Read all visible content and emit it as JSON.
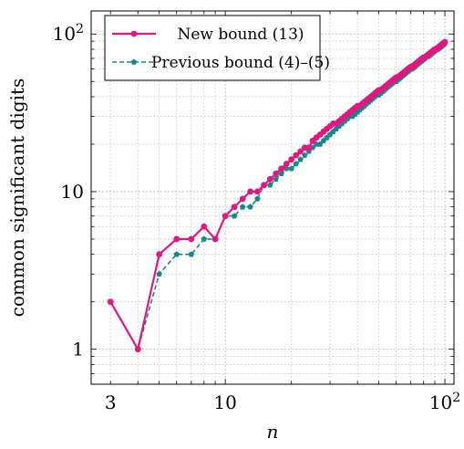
{
  "chart_data": {
    "type": "line",
    "xlabel": "n",
    "ylabel": "common significant digits",
    "xscale": "log",
    "yscale": "log",
    "xlim": [
      2.45,
      110
    ],
    "ylim": [
      0.6,
      140
    ],
    "xticks": [
      {
        "value": 3,
        "label": "3"
      },
      {
        "value": 10,
        "label": "10"
      },
      {
        "value": 100,
        "label": "10",
        "sup": "2"
      }
    ],
    "yticks": [
      {
        "value": 1,
        "label": "1"
      },
      {
        "value": 10,
        "label": "10"
      },
      {
        "value": 100,
        "label": "10",
        "sup": "2"
      }
    ],
    "grid": true,
    "legend_position": "top-left",
    "series": [
      {
        "name": "New bound (13)",
        "color": "#e6157f",
        "style": "solid",
        "marker": "circle",
        "x": [
          3,
          4,
          5,
          6,
          7,
          8,
          9,
          10,
          11,
          12,
          13,
          14,
          15,
          16,
          17,
          18,
          19,
          20,
          21,
          22,
          23,
          24,
          25,
          26,
          27,
          28,
          29,
          30,
          31,
          32,
          33,
          34,
          35,
          36,
          37,
          38,
          39,
          40,
          41,
          42,
          43,
          44,
          45,
          46,
          47,
          48,
          49,
          50,
          51,
          52,
          53,
          54,
          55,
          56,
          57,
          58,
          59,
          60,
          61,
          62,
          63,
          64,
          65,
          66,
          67,
          68,
          69,
          70,
          71,
          72,
          73,
          74,
          75,
          76,
          77,
          78,
          79,
          80,
          81,
          82,
          83,
          84,
          85,
          86,
          87,
          88,
          89,
          90,
          91,
          92,
          93,
          94,
          95,
          96,
          97,
          98,
          99,
          100
        ],
        "y": [
          2,
          1,
          4,
          5,
          5,
          6,
          5,
          7,
          8,
          9,
          10,
          10,
          11,
          12,
          13,
          14,
          15,
          16,
          17,
          18,
          19,
          19,
          21,
          22,
          23,
          24,
          25,
          26,
          27,
          27,
          28,
          29,
          30,
          31,
          32,
          33,
          34,
          35,
          35,
          36,
          37,
          38,
          39,
          40,
          41,
          42,
          43,
          44,
          44,
          45,
          46,
          47,
          48,
          49,
          50,
          51,
          52,
          53,
          53,
          54,
          55,
          56,
          57,
          58,
          59,
          60,
          61,
          62,
          62,
          63,
          64,
          65,
          66,
          67,
          68,
          69,
          70,
          71,
          71,
          72,
          73,
          74,
          75,
          76,
          77,
          78,
          79,
          80,
          80,
          81,
          82,
          83,
          84,
          85,
          86,
          87,
          88,
          89
        ]
      },
      {
        "name": "Previous bound (4)–(5)",
        "color": "#118a8a",
        "style": "dashed",
        "marker": "pentagon",
        "x": [
          3,
          4,
          5,
          6,
          7,
          8,
          9,
          10,
          11,
          12,
          13,
          14,
          15,
          16,
          17,
          18,
          19,
          20,
          21,
          22,
          23,
          24,
          25,
          26,
          27,
          28,
          29,
          30,
          31,
          32,
          33,
          34,
          35,
          36,
          37,
          38,
          39,
          40,
          41,
          42,
          43,
          44,
          45,
          46,
          47,
          48,
          49,
          50,
          51,
          52,
          53,
          54,
          55,
          56,
          57,
          58,
          59,
          60,
          61,
          62,
          63,
          64,
          65,
          66,
          67,
          68,
          69,
          70,
          71,
          72,
          73,
          74,
          75,
          76,
          77,
          78,
          79,
          80,
          81,
          82,
          83,
          84,
          85,
          86,
          87,
          88,
          89,
          90,
          91,
          92,
          93,
          94,
          95,
          96,
          97,
          98,
          99,
          100
        ],
        "y": [
          2,
          1,
          3,
          4,
          4,
          5,
          5,
          7,
          7,
          8,
          8,
          9,
          11,
          11,
          12,
          13,
          14,
          14,
          15,
          16,
          17,
          18,
          19,
          20,
          20,
          21,
          22,
          23,
          24,
          25,
          26,
          27,
          28,
          29,
          30,
          30,
          31,
          32,
          33,
          34,
          35,
          36,
          37,
          38,
          39,
          40,
          41,
          41,
          42,
          43,
          44,
          45,
          46,
          47,
          48,
          49,
          50,
          50,
          51,
          52,
          53,
          54,
          55,
          56,
          57,
          58,
          59,
          60,
          60,
          61,
          62,
          63,
          64,
          65,
          66,
          67,
          68,
          69,
          70,
          71,
          72,
          72,
          73,
          74,
          75,
          76,
          77,
          78,
          79,
          80,
          80,
          81,
          82,
          83,
          84,
          85,
          86,
          87
        ]
      }
    ]
  }
}
